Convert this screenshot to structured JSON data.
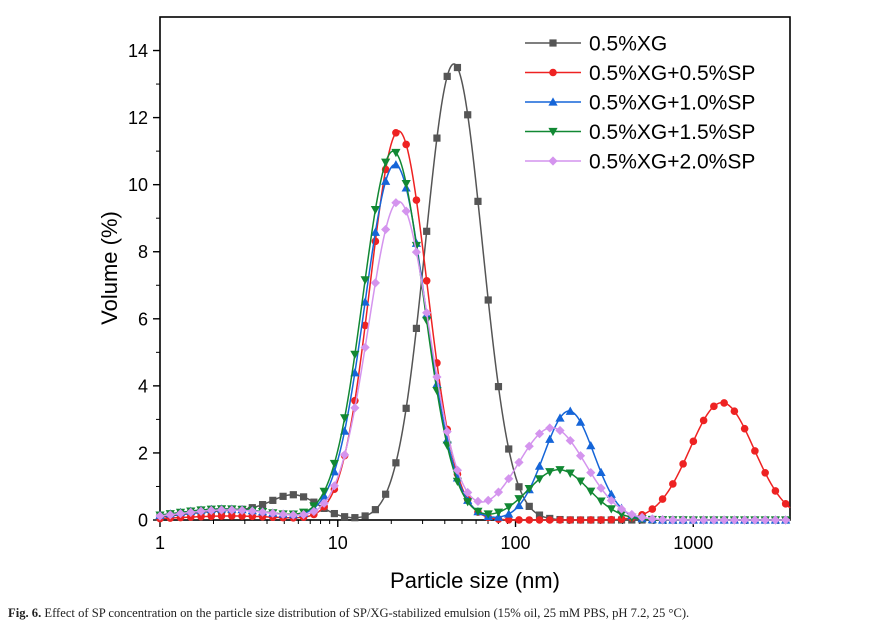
{
  "caption": {
    "label": "Fig. 6.",
    "text": "Effect of SP concentration on the particle size distribution of SP/XG-stabilized emulsion (15% oil, 25 mM PBS, pH 7.2, 25 °C)."
  },
  "chart_data": {
    "type": "line",
    "title": "",
    "xlabel": "Particle size (nm)",
    "ylabel": "Volume (%)",
    "xscale": "log",
    "xlim": [
      1,
      3500
    ],
    "ylim": [
      0,
      15
    ],
    "xticks": [
      1,
      10,
      100,
      1000
    ],
    "xtick_labels": [
      "1",
      "10",
      "100",
      "1000"
    ],
    "yticks": [
      0,
      2,
      4,
      6,
      8,
      10,
      12,
      14
    ],
    "ytick_labels": [
      "0",
      "2",
      "4",
      "6",
      "8",
      "10",
      "12",
      "14"
    ],
    "legend_position": "top-right",
    "series": [
      {
        "name": "0.5%XG",
        "color": "#555555",
        "marker": "square",
        "peaks": [
          {
            "center": 2.6,
            "height": 0.28,
            "sigma": 0.28
          },
          {
            "center": 5.8,
            "height": 0.62,
            "sigma": 0.13
          },
          {
            "center": 45,
            "height": 13.6,
            "sigma": 0.16
          }
        ]
      },
      {
        "name": "0.5%XG+0.5%SP",
        "color": "#ee2222",
        "marker": "circle",
        "peaks": [
          {
            "center": 2.5,
            "height": 0.12,
            "sigma": 0.28
          },
          {
            "center": 22,
            "height": 11.6,
            "sigma": 0.16
          },
          {
            "center": 1450,
            "height": 3.5,
            "sigma": 0.18
          }
        ]
      },
      {
        "name": "0.5%XG+1.0%SP",
        "color": "#1565d8",
        "marker": "triangle-up",
        "peaks": [
          {
            "center": 2.3,
            "height": 0.33,
            "sigma": 0.28
          },
          {
            "center": 21,
            "height": 10.6,
            "sigma": 0.17
          },
          {
            "center": 200,
            "height": 3.25,
            "sigma": 0.14
          }
        ]
      },
      {
        "name": "0.5%XG+1.5%SP",
        "color": "#118833",
        "marker": "triangle-down",
        "peaks": [
          {
            "center": 2.3,
            "height": 0.33,
            "sigma": 0.28
          },
          {
            "center": 20.5,
            "height": 11.0,
            "sigma": 0.17
          },
          {
            "center": 175,
            "height": 1.5,
            "sigma": 0.17
          }
        ]
      },
      {
        "name": "0.5%XG+2.0%SP",
        "color": "#d494ee",
        "marker": "diamond",
        "peaks": [
          {
            "center": 2.4,
            "height": 0.3,
            "sigma": 0.28
          },
          {
            "center": 22,
            "height": 9.5,
            "sigma": 0.17
          },
          {
            "center": 160,
            "height": 2.75,
            "sigma": 0.19
          }
        ]
      }
    ]
  }
}
